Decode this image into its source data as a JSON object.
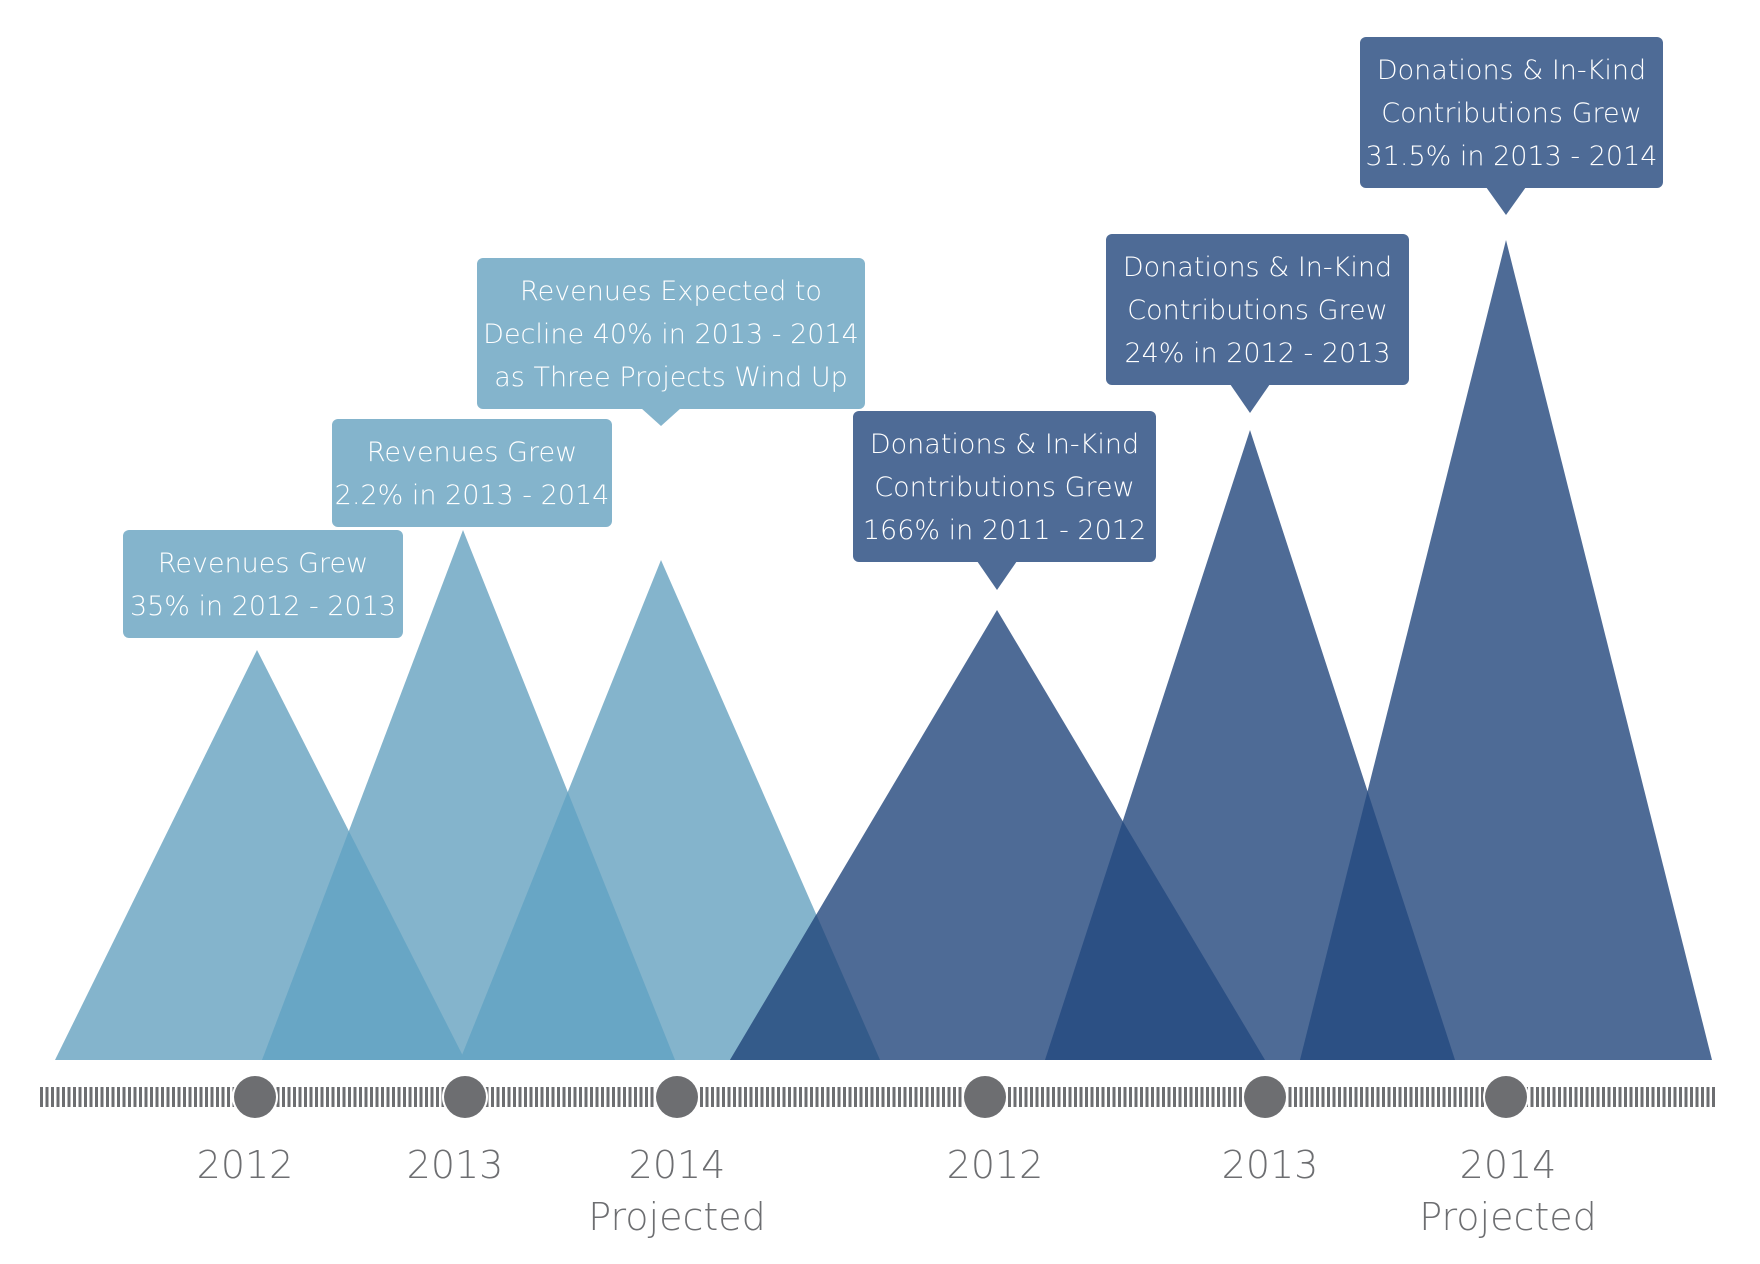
{
  "chart_data": {
    "type": "triangle-timeline",
    "colors": {
      "revenue": "#84b4cc",
      "revenue_overlap": "#68a6c5",
      "donation": "#4e6b96",
      "donation_overlap": "#2c5084",
      "timeline": "#6d6e71",
      "year_text": "#6d6e71",
      "callout_text": "#ffffff"
    },
    "series": [
      {
        "name": "Revenues",
        "color_key": "revenue",
        "points": [
          {
            "year": "2012",
            "sublabel": "",
            "relative_value": 41,
            "callout": [
              "Revenues Grew",
              "35% in 2012 - 2013"
            ]
          },
          {
            "year": "2013",
            "sublabel": "",
            "relative_value": 53,
            "callout": [
              "Revenues Grew",
              "2.2% in 2013 - 2014"
            ]
          },
          {
            "year": "2014",
            "sublabel": "Projected",
            "relative_value": 50,
            "callout": [
              "Revenues Expected to",
              "Decline 40% in 2013 - 2014",
              "as Three Projects Wind Up"
            ]
          }
        ]
      },
      {
        "name": "Donations & In-Kind Contributions",
        "color_key": "donation",
        "points": [
          {
            "year": "2012",
            "sublabel": "",
            "relative_value": 45,
            "callout": [
              "Donations & In-Kind",
              "Contributions Grew",
              "166% in 2011 - 2012"
            ]
          },
          {
            "year": "2013",
            "sublabel": "",
            "relative_value": 63,
            "callout": [
              "Donations & In-Kind",
              "Contributions Grew",
              "24% in 2012 - 2013"
            ]
          },
          {
            "year": "2014",
            "sublabel": "Projected",
            "relative_value": 82,
            "callout": [
              "Donations & In-Kind",
              "Contributions Grew",
              "31.5% in 2013 - 2014"
            ]
          }
        ]
      }
    ]
  }
}
